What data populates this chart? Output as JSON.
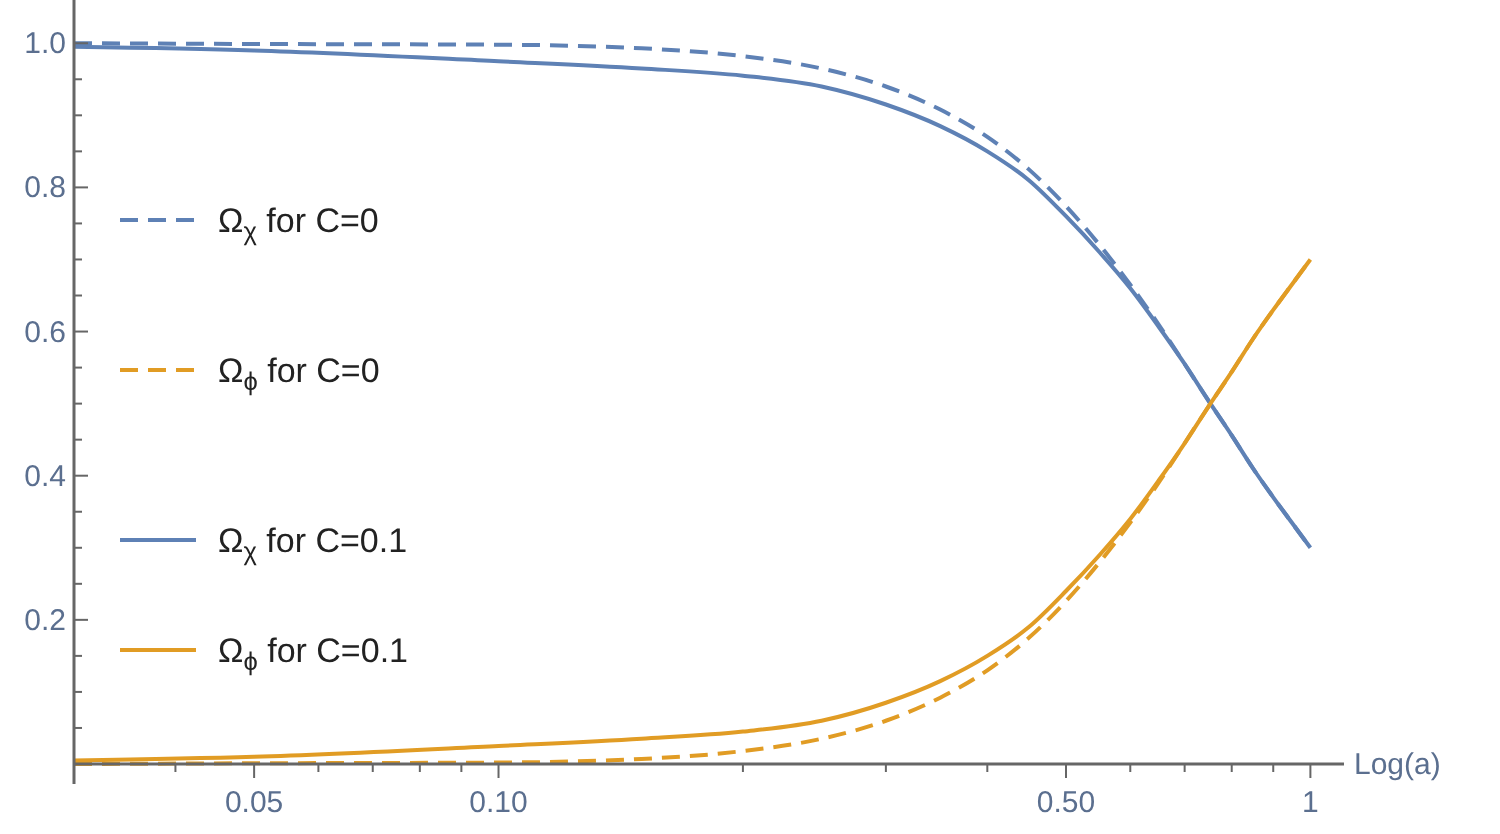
{
  "chart_data": {
    "type": "line",
    "xlabel": "Log(a)",
    "log": "x",
    "legend": "left",
    "grid": false,
    "x": [
      0.03,
      0.05,
      0.1,
      0.15,
      0.2,
      0.25,
      0.3,
      0.35,
      0.4,
      0.45,
      0.5,
      0.55,
      0.6,
      0.65,
      0.7,
      0.75,
      0.8,
      0.85,
      0.9,
      0.95,
      1
    ],
    "series": [
      {
        "name": "Ω$_{χ}$ for C=0",
        "color": "#5e81b5",
        "line_style": "dashed",
        "values": [
          1.0,
          0.999,
          0.998,
          0.993,
          0.982,
          0.965,
          0.94,
          0.908,
          0.87,
          0.825,
          0.774,
          0.72,
          0.665,
          0.61,
          0.555,
          0.503,
          0.456,
          0.41,
          0.37,
          0.334,
          0.3
        ]
      },
      {
        "name": "Ω$_{ϕ}$ for C=0",
        "color": "#e19c24",
        "line_style": "dashed",
        "values": [
          0.0,
          0.001,
          0.002,
          0.007,
          0.018,
          0.035,
          0.06,
          0.092,
          0.13,
          0.175,
          0.226,
          0.28,
          0.335,
          0.39,
          0.445,
          0.497,
          0.544,
          0.59,
          0.63,
          0.666,
          0.7
        ]
      },
      {
        "name": "Ω$_{χ}$ for C=0.1",
        "color": "#5e81b5",
        "line_style": "solid",
        "values": [
          0.995,
          0.99,
          0.975,
          0.965,
          0.955,
          0.94,
          0.915,
          0.885,
          0.85,
          0.81,
          0.76,
          0.71,
          0.66,
          0.607,
          0.555,
          0.503,
          0.456,
          0.41,
          0.37,
          0.334,
          0.3
        ]
      },
      {
        "name": "Ω$_{ϕ}$ for C=0.1",
        "color": "#e19c24",
        "line_style": "solid",
        "values": [
          0.005,
          0.01,
          0.025,
          0.035,
          0.045,
          0.06,
          0.085,
          0.115,
          0.15,
          0.19,
          0.24,
          0.29,
          0.34,
          0.393,
          0.445,
          0.497,
          0.544,
          0.59,
          0.63,
          0.666,
          0.7
        ]
      }
    ],
    "xlim": [
      0.03,
      1.1
    ],
    "ylim": [
      0,
      1.06
    ],
    "xticks": [
      {
        "value": 0.03,
        "label": null
      },
      {
        "value": 0.04,
        "label": null
      },
      {
        "value": 0.05,
        "label": "0.05"
      },
      {
        "value": 0.06,
        "label": null
      },
      {
        "value": 0.07,
        "label": null
      },
      {
        "value": 0.08,
        "label": null
      },
      {
        "value": 0.09,
        "label": null
      },
      {
        "value": 0.1,
        "label": "0.10"
      },
      {
        "value": 0.2,
        "label": null
      },
      {
        "value": 0.3,
        "label": null
      },
      {
        "value": 0.4,
        "label": null
      },
      {
        "value": 0.5,
        "label": "0.50"
      },
      {
        "value": 0.6,
        "label": null
      },
      {
        "value": 0.7,
        "label": null
      },
      {
        "value": 0.8,
        "label": null
      },
      {
        "value": 0.9,
        "label": null
      },
      {
        "value": 1,
        "label": "1"
      }
    ],
    "yticks": [
      {
        "value": 0.05,
        "label": null
      },
      {
        "value": 0.1,
        "label": null
      },
      {
        "value": 0.15,
        "label": null
      },
      {
        "value": 0.2,
        "label": "0.2"
      },
      {
        "value": 0.25,
        "label": null
      },
      {
        "value": 0.3,
        "label": null
      },
      {
        "value": 0.35,
        "label": null
      },
      {
        "value": 0.4,
        "label": "0.4"
      },
      {
        "value": 0.45,
        "label": null
      },
      {
        "value": 0.5,
        "label": null
      },
      {
        "value": 0.55,
        "label": null
      },
      {
        "value": 0.6,
        "label": "0.6"
      },
      {
        "value": 0.65,
        "label": null
      },
      {
        "value": 0.7,
        "label": null
      },
      {
        "value": 0.75,
        "label": null
      },
      {
        "value": 0.8,
        "label": "0.8"
      },
      {
        "value": 0.85,
        "label": null
      },
      {
        "value": 0.9,
        "label": null
      },
      {
        "value": 0.95,
        "label": null
      },
      {
        "value": 1.0,
        "label": "1.0"
      }
    ]
  }
}
